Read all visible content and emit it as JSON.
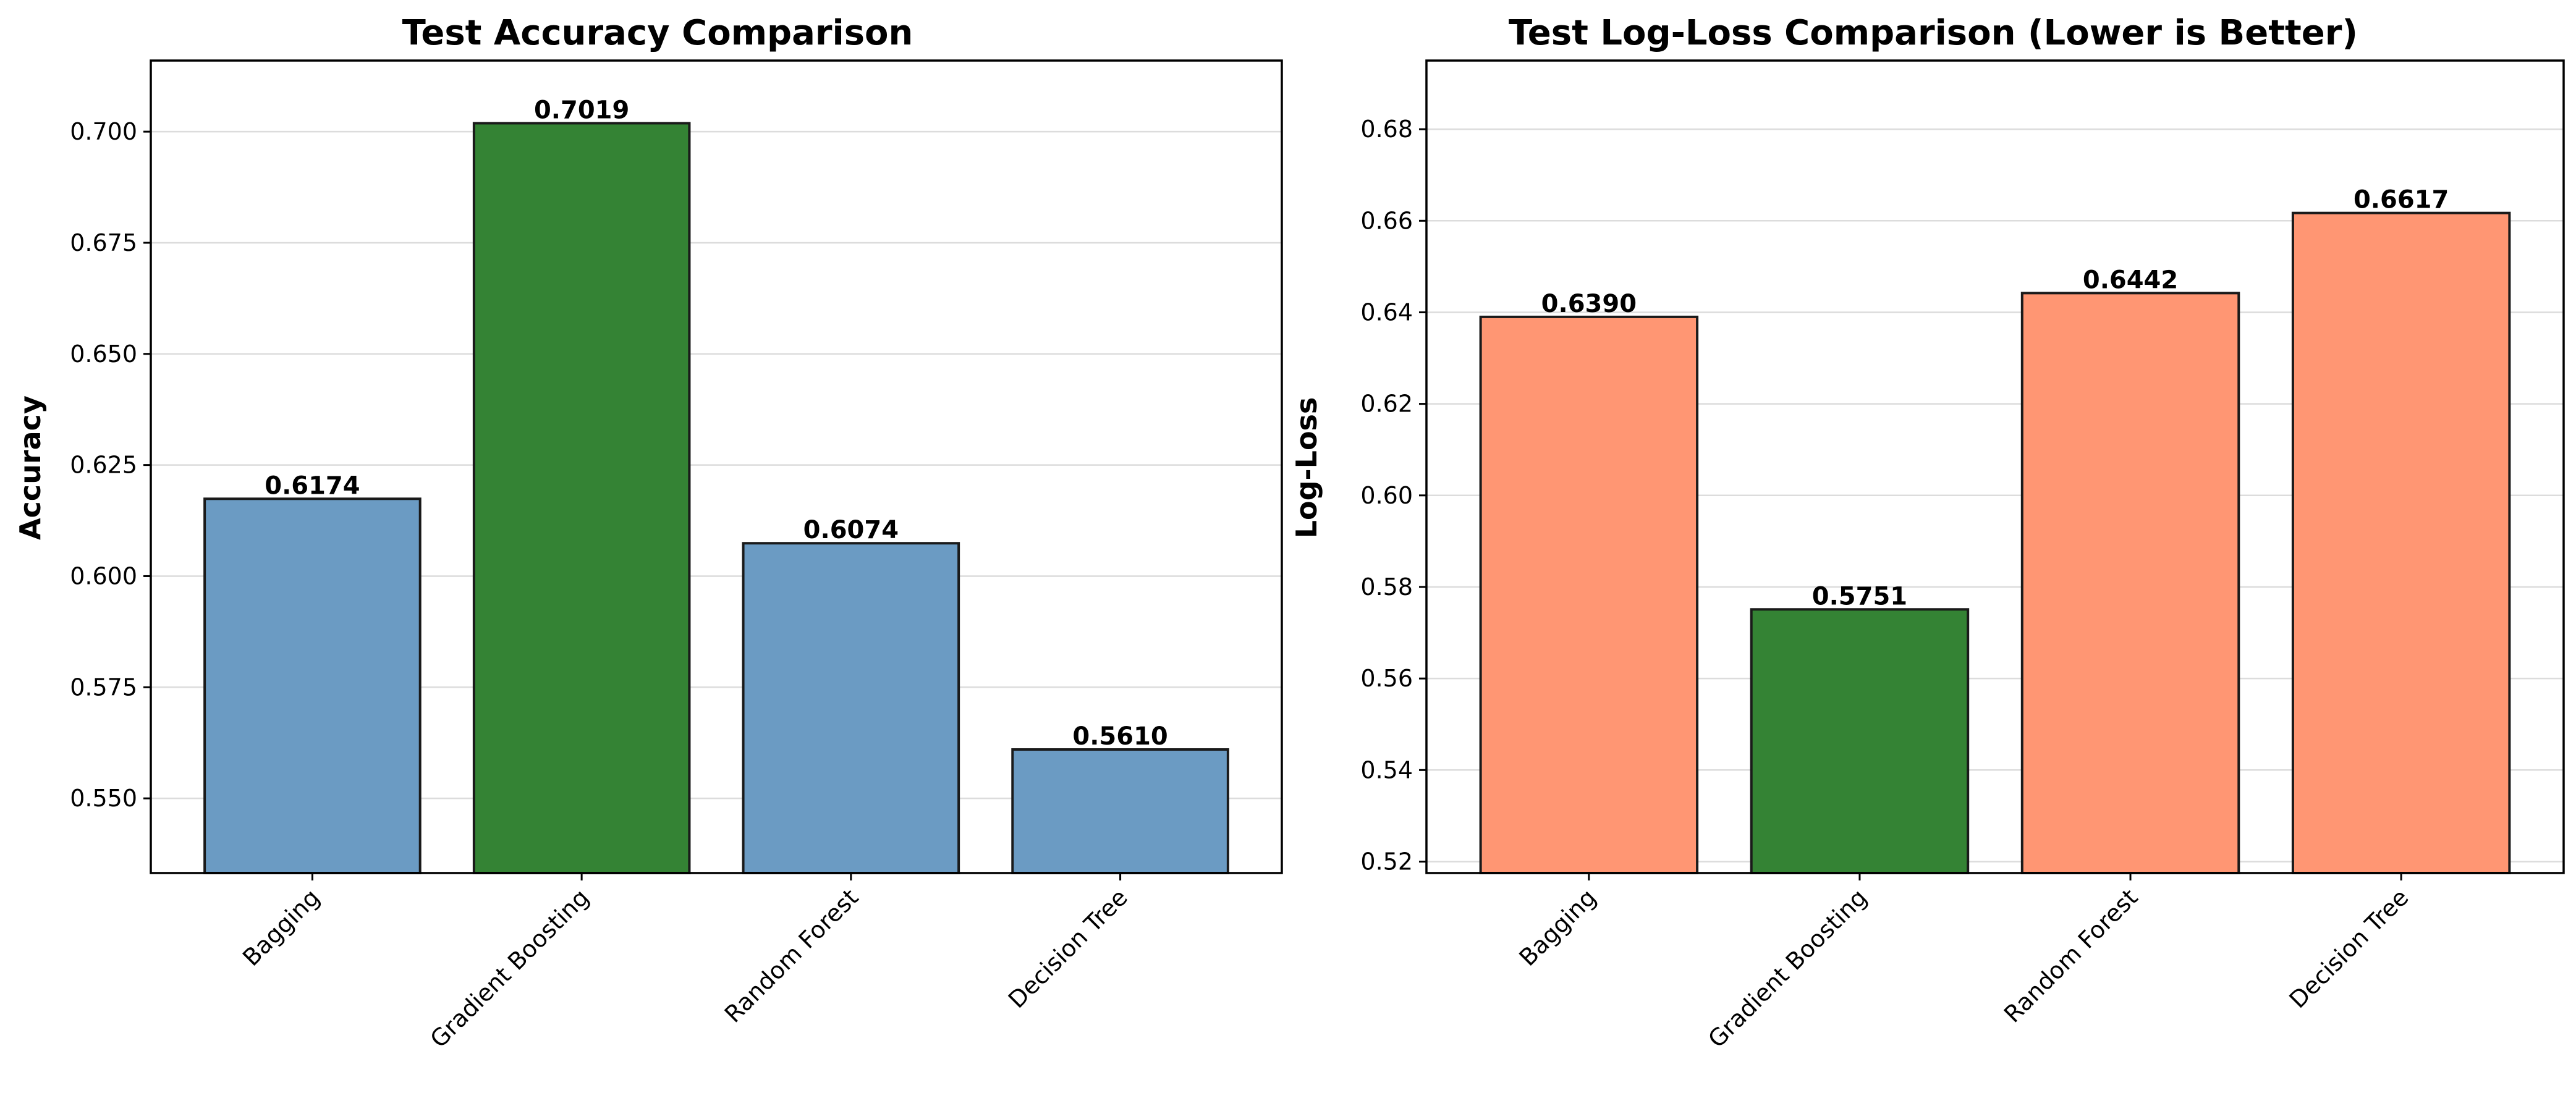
{
  "chart_data": [
    {
      "type": "bar",
      "title": "Test Accuracy Comparison",
      "xlabel": "",
      "ylabel": "Accuracy",
      "categories": [
        "Bagging",
        "Gradient Boosting",
        "Random Forest",
        "Decision Tree"
      ],
      "values": [
        0.6174,
        0.7019,
        0.6074,
        0.561
      ],
      "value_labels": [
        "0.6174",
        "0.7019",
        "0.6074",
        "0.5610"
      ],
      "bar_colors": [
        "#6b9bc3",
        "#348334",
        "#6b9bc3",
        "#6b9bc3"
      ],
      "ylim": [
        0.5332,
        0.716
      ],
      "yticks": [
        0.55,
        0.575,
        0.6,
        0.625,
        0.65,
        0.675,
        0.7
      ],
      "ytick_labels": [
        "0.550",
        "0.575",
        "0.600",
        "0.625",
        "0.650",
        "0.675",
        "0.700"
      ],
      "grid": true,
      "grid_axis": "y"
    },
    {
      "type": "bar",
      "title": "Test Log-Loss Comparison (Lower is Better)",
      "xlabel": "",
      "ylabel": "Log-Loss",
      "categories": [
        "Bagging",
        "Gradient Boosting",
        "Random Forest",
        "Decision Tree"
      ],
      "values": [
        0.639,
        0.5751,
        0.6442,
        0.6617
      ],
      "value_labels": [
        "0.6390",
        "0.5751",
        "0.6442",
        "0.6617"
      ],
      "bar_colors": [
        "#ff9673",
        "#348334",
        "#ff9673",
        "#ff9673"
      ],
      "ylim": [
        0.5175,
        0.695
      ],
      "yticks": [
        0.52,
        0.54,
        0.56,
        0.58,
        0.6,
        0.62,
        0.64,
        0.66,
        0.68
      ],
      "ytick_labels": [
        "0.52",
        "0.54",
        "0.56",
        "0.58",
        "0.60",
        "0.62",
        "0.64",
        "0.66",
        "0.68"
      ],
      "grid": true,
      "grid_axis": "y"
    }
  ]
}
